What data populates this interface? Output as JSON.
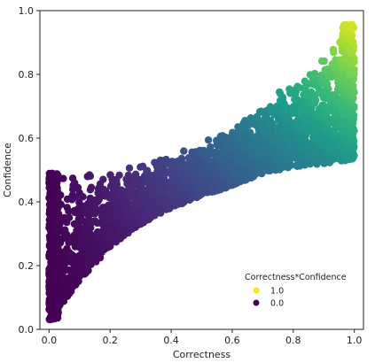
{
  "chart_data": {
    "type": "scatter",
    "title": "",
    "xlabel": "Correctness",
    "ylabel": "Confidence",
    "xlim": [
      -0.03,
      1.03
    ],
    "ylim": [
      0.0,
      1.0
    ],
    "x_ticks": [
      0.0,
      0.2,
      0.4,
      0.6,
      0.8,
      1.0
    ],
    "y_ticks": [
      0.0,
      0.2,
      0.4,
      0.6,
      0.8,
      1.0
    ],
    "x_tick_labels": [
      "0.0",
      "0.2",
      "0.4",
      "0.6",
      "0.8",
      "1.0"
    ],
    "y_tick_labels": [
      "0.0",
      "0.2",
      "0.4",
      "0.6",
      "0.8",
      "1.0"
    ],
    "grid": false,
    "colormap": "viridis",
    "color_encoding": "Correctness*Confidence",
    "legend": {
      "title": "Correctness*Confidence",
      "placement": "bottom-right",
      "entries": [
        {
          "label": "1.0",
          "value": 1.0,
          "color": "#fde725"
        },
        {
          "label": "0.0",
          "value": 0.0,
          "color": "#440154"
        }
      ]
    },
    "band": {
      "x": [
        0.0,
        0.1,
        0.2,
        0.3,
        0.4,
        0.5,
        0.6,
        0.7,
        0.8,
        0.9,
        1.0
      ],
      "upper": [
        0.49,
        0.49,
        0.5,
        0.52,
        0.55,
        0.59,
        0.63,
        0.7,
        0.79,
        0.87,
        0.97
      ],
      "lower": [
        0.03,
        0.15,
        0.26,
        0.33,
        0.38,
        0.42,
        0.45,
        0.49,
        0.51,
        0.52,
        0.53
      ]
    }
  }
}
